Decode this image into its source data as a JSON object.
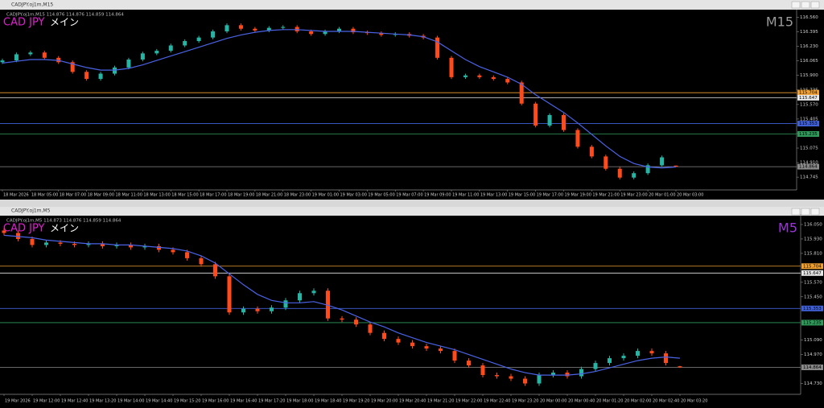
{
  "chart_data": [
    {
      "type": "candlestick",
      "title": "CADJPY.oj1m,M15",
      "info": "CADJPY.oj1m,M15  114.876 114.876 114.859 114.864",
      "symbol": "CAD JPY",
      "label": "メイン",
      "timeframe": "M15",
      "timeframe_color": "#9a9a9a",
      "up_color": "#26b5a4",
      "down_color": "#ff4a1c",
      "ma_color": "#4a63e6",
      "categories": [
        "18 Mar 2026",
        null,
        "18 Mar 05:00",
        null,
        "18 Mar 07:00",
        null,
        "18 Mar 09:00",
        null,
        "18 Mar 11:00",
        null,
        "18 Mar 13:00",
        null,
        "18 Mar 15:00",
        null,
        "18 Mar 17:00",
        null,
        "18 Mar 19:00",
        null,
        "18 Mar 21:00",
        null,
        "18 Mar 23:00",
        null,
        "19 Mar 01:00",
        null,
        "19 Mar 03:00",
        null,
        "19 Mar 05:00",
        null,
        "19 Mar 07:00",
        null,
        "19 Mar 09:00",
        null,
        "19 Mar 11:00",
        null,
        "19 Mar 13:00",
        null,
        "19 Mar 15:00",
        null,
        "19 Mar 17:00",
        null,
        "19 Mar 19:00",
        null,
        "19 Mar 21:00",
        null,
        "19 Mar 23:00",
        null,
        "20 Mar 01:00",
        null,
        "20 Mar 03:00"
      ],
      "open": [
        116.05,
        116.07,
        116.14,
        116.16,
        116.1,
        116.05,
        115.94,
        115.86,
        115.92,
        115.99,
        116.08,
        116.15,
        116.18,
        116.24,
        116.29,
        116.33,
        116.4,
        116.47,
        116.43,
        116.41,
        116.44,
        116.45,
        116.4,
        116.37,
        116.4,
        116.43,
        116.39,
        116.38,
        116.36,
        116.37,
        116.35,
        116.33,
        116.1,
        115.88,
        115.9,
        115.88,
        115.86,
        115.82,
        115.58,
        115.33,
        115.45,
        115.28,
        115.09,
        114.98,
        114.84,
        114.74,
        114.79,
        114.88,
        114.876
      ],
      "high": [
        116.09,
        116.16,
        116.18,
        116.18,
        116.12,
        116.07,
        115.96,
        115.94,
        116.01,
        116.1,
        116.17,
        116.2,
        116.26,
        116.31,
        116.35,
        116.42,
        116.49,
        116.49,
        116.45,
        116.46,
        116.47,
        116.47,
        116.42,
        116.42,
        116.45,
        116.45,
        116.41,
        116.4,
        116.39,
        116.39,
        116.37,
        116.35,
        116.12,
        115.92,
        115.92,
        115.9,
        115.88,
        115.84,
        115.6,
        115.47,
        115.47,
        115.3,
        115.11,
        115.0,
        114.86,
        114.81,
        114.9,
        114.99,
        114.876
      ],
      "low": [
        116.03,
        116.05,
        116.12,
        116.08,
        116.03,
        115.92,
        115.84,
        115.84,
        115.9,
        115.97,
        116.06,
        116.13,
        116.16,
        116.22,
        116.27,
        116.31,
        116.38,
        116.41,
        116.39,
        116.39,
        116.42,
        116.38,
        116.35,
        116.35,
        116.38,
        116.37,
        116.36,
        116.34,
        116.34,
        116.33,
        116.31,
        116.08,
        115.86,
        115.86,
        115.86,
        115.84,
        115.8,
        115.56,
        115.31,
        115.31,
        115.26,
        115.07,
        114.96,
        114.82,
        114.72,
        114.72,
        114.77,
        114.86,
        114.859
      ],
      "close": [
        116.07,
        116.14,
        116.16,
        116.1,
        116.05,
        115.94,
        115.86,
        115.92,
        115.99,
        116.08,
        116.15,
        116.18,
        116.24,
        116.29,
        116.33,
        116.4,
        116.47,
        116.43,
        116.41,
        116.44,
        116.45,
        116.4,
        116.37,
        116.4,
        116.43,
        116.39,
        116.38,
        116.36,
        116.37,
        116.35,
        116.33,
        116.1,
        115.88,
        115.9,
        115.88,
        115.86,
        115.82,
        115.58,
        115.33,
        115.45,
        115.28,
        115.09,
        114.98,
        114.84,
        114.74,
        114.79,
        114.88,
        114.97,
        114.864
      ],
      "ma": [
        116.04,
        116.06,
        116.08,
        116.08,
        116.07,
        116.03,
        115.99,
        115.96,
        115.96,
        115.98,
        116.02,
        116.07,
        116.12,
        116.17,
        116.22,
        116.27,
        116.32,
        116.36,
        116.39,
        116.41,
        116.42,
        116.42,
        116.41,
        116.4,
        116.4,
        116.4,
        116.39,
        116.38,
        116.37,
        116.36,
        116.34,
        116.28,
        116.18,
        116.08,
        116.0,
        115.94,
        115.88,
        115.8,
        115.68,
        115.58,
        115.48,
        115.36,
        115.23,
        115.1,
        114.98,
        114.9,
        114.86,
        114.85,
        114.86
      ],
      "ylim": [
        114.6,
        116.61
      ],
      "yticks": [
        {
          "value": 116.56,
          "label": "116.560"
        },
        116.395,
        {
          "value": 116.23,
          "label": "116.230"
        },
        116.065,
        {
          "value": 115.9,
          "label": "115.900"
        },
        115.735,
        {
          "value": 115.57,
          "label": "115.570"
        },
        115.405,
        {
          "value": 115.24,
          "label": "115.240"
        },
        115.075,
        {
          "value": 114.91,
          "label": "114.910"
        },
        114.745
      ],
      "levels": [
        {
          "value": 115.704,
          "color": "#f0a030"
        },
        {
          "value": 115.647,
          "color": "#e6e6e6"
        },
        {
          "value": 115.353,
          "color": "#4060d8"
        },
        {
          "value": 115.235,
          "color": "#2f9a5a"
        },
        {
          "value": 114.864,
          "color": "#8a8a8a"
        }
      ]
    },
    {
      "type": "candlestick",
      "title": "CADJPY.oj1m,M5",
      "info": "CADJPY.oj1m,M5  114.873 114.876 114.859 114.864",
      "symbol": "CAD JPY",
      "label": "メイン",
      "timeframe": "M5",
      "timeframe_color": "#9b35d8",
      "up_color": "#26b5a4",
      "down_color": "#ff4a1c",
      "ma_color": "#4a63e6",
      "categories": [
        "19 Mar 2026",
        null,
        "19 Mar 12:00",
        null,
        "19 Mar 12:40",
        null,
        "19 Mar 13:20",
        null,
        "19 Mar 14:00",
        null,
        "19 Mar 14:40",
        null,
        "19 Mar 15:20",
        null,
        "19 Mar 16:00",
        null,
        "19 Mar 16:40",
        null,
        "19 Mar 17:20",
        null,
        "19 Mar 18:00",
        null,
        "19 Mar 18:40",
        null,
        "19 Mar 19:20",
        null,
        "19 Mar 20:00",
        null,
        "19 Mar 20:40",
        null,
        "19 Mar 21:20",
        null,
        "19 Mar 22:00",
        null,
        "19 Mar 22:40",
        null,
        "19 Mar 23:20",
        null,
        "20 Mar 00:00",
        null,
        "20 Mar 00:40",
        null,
        "20 Mar 01:20",
        null,
        "20 Mar 02:00",
        null,
        "20 Mar 02:40",
        null,
        "20 Mar 03:20"
      ],
      "open": [
        116.0,
        115.98,
        115.93,
        115.88,
        115.9,
        115.89,
        115.88,
        115.89,
        115.87,
        115.88,
        115.86,
        115.87,
        115.84,
        115.82,
        115.77,
        115.72,
        115.62,
        115.32,
        115.35,
        115.33,
        115.36,
        115.42,
        115.48,
        115.5,
        115.27,
        115.26,
        115.22,
        115.15,
        115.1,
        115.07,
        115.04,
        115.02,
        115.0,
        114.92,
        114.88,
        114.8,
        114.79,
        114.77,
        114.73,
        114.8,
        114.82,
        114.79,
        114.85,
        114.9,
        114.94,
        114.96,
        115.0,
        114.98,
        114.873
      ],
      "high": [
        116.02,
        116.0,
        115.95,
        115.92,
        115.92,
        115.91,
        115.91,
        115.91,
        115.9,
        115.9,
        115.89,
        115.89,
        115.86,
        115.84,
        115.79,
        115.74,
        115.64,
        115.37,
        115.37,
        115.38,
        115.44,
        115.5,
        115.52,
        115.52,
        115.29,
        115.28,
        115.24,
        115.17,
        115.12,
        115.09,
        115.06,
        115.04,
        115.02,
        114.94,
        114.9,
        114.82,
        114.81,
        114.79,
        114.82,
        114.84,
        114.84,
        114.87,
        114.92,
        114.96,
        114.98,
        115.02,
        115.02,
        115.0,
        114.876
      ],
      "low": [
        115.96,
        115.91,
        115.86,
        115.86,
        115.87,
        115.86,
        115.86,
        115.85,
        115.85,
        115.84,
        115.84,
        115.82,
        115.8,
        115.75,
        115.7,
        115.6,
        115.3,
        115.3,
        115.31,
        115.31,
        115.34,
        115.4,
        115.46,
        115.25,
        115.24,
        115.2,
        115.13,
        115.08,
        115.05,
        115.02,
        115.0,
        114.98,
        114.9,
        114.86,
        114.78,
        114.77,
        114.75,
        114.71,
        114.71,
        114.78,
        114.77,
        114.77,
        114.83,
        114.88,
        114.92,
        114.94,
        114.96,
        114.88,
        114.859
      ],
      "close": [
        115.98,
        115.93,
        115.88,
        115.9,
        115.89,
        115.88,
        115.89,
        115.87,
        115.88,
        115.86,
        115.87,
        115.84,
        115.82,
        115.77,
        115.72,
        115.62,
        115.32,
        115.35,
        115.33,
        115.36,
        115.42,
        115.48,
        115.5,
        115.27,
        115.26,
        115.22,
        115.15,
        115.1,
        115.07,
        115.04,
        115.02,
        115.0,
        114.92,
        114.88,
        114.8,
        114.79,
        114.77,
        114.73,
        114.8,
        114.82,
        114.79,
        114.85,
        114.9,
        114.94,
        114.96,
        115.0,
        114.98,
        114.9,
        114.864
      ],
      "ma": [
        115.96,
        115.95,
        115.94,
        115.92,
        115.91,
        115.9,
        115.89,
        115.89,
        115.88,
        115.88,
        115.87,
        115.86,
        115.85,
        115.83,
        115.79,
        115.73,
        115.64,
        115.55,
        115.47,
        115.42,
        115.4,
        115.4,
        115.41,
        115.38,
        115.34,
        115.29,
        115.24,
        115.2,
        115.15,
        115.11,
        115.07,
        115.04,
        115.01,
        114.97,
        114.93,
        114.89,
        114.85,
        114.82,
        114.8,
        114.8,
        114.8,
        114.81,
        114.83,
        114.86,
        114.89,
        114.92,
        114.94,
        114.95,
        114.94
      ],
      "ylim": [
        114.64,
        116.11
      ],
      "yticks": [
        {
          "value": 116.05,
          "label": "116.050"
        },
        {
          "value": 115.93,
          "label": "115.930"
        },
        {
          "value": 115.81,
          "label": "115.810"
        },
        {
          "value": 115.57,
          "label": "115.570"
        },
        {
          "value": 115.45,
          "label": "115.450"
        },
        {
          "value": 115.09,
          "label": "115.090"
        },
        {
          "value": 114.97,
          "label": "114.970"
        },
        {
          "value": 114.73,
          "label": "114.730"
        }
      ],
      "levels": [
        {
          "value": 115.704,
          "color": "#f0a030"
        },
        {
          "value": 115.647,
          "color": "#e6e6e6"
        },
        {
          "value": 115.353,
          "color": "#4060d8"
        },
        {
          "value": 115.235,
          "color": "#2f9a5a"
        },
        {
          "value": 114.864,
          "color": "#8a8a8a"
        }
      ]
    }
  ]
}
